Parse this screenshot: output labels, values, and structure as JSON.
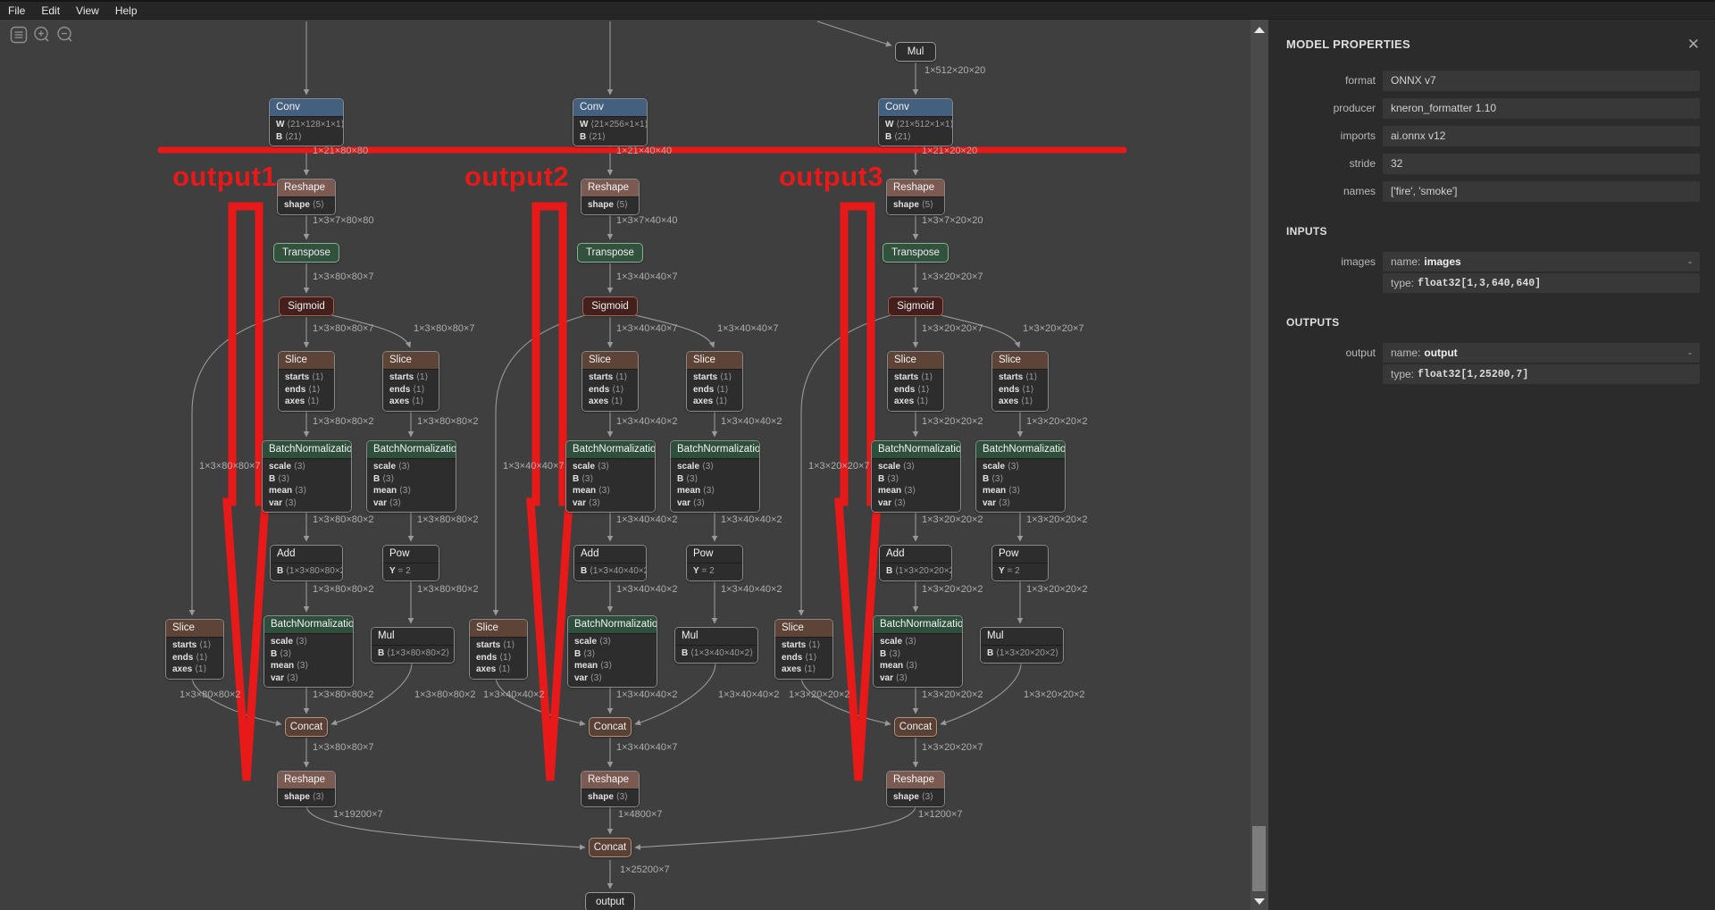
{
  "menu": {
    "items": [
      "File",
      "Edit",
      "View",
      "Help"
    ]
  },
  "toolbar": {
    "buttons": [
      {
        "icon": "menu-icon"
      },
      {
        "icon": "zoom-in-icon"
      },
      {
        "icon": "zoom-out-icon"
      }
    ]
  },
  "annotations": {
    "color": "#e81919",
    "labels": [
      "output1",
      "output2",
      "output3"
    ]
  },
  "graph": {
    "branches": [
      {
        "conv": {
          "title": "Conv",
          "rows": [
            [
              "W",
              "⟨21×128×1×1⟩"
            ],
            [
              "B",
              "⟨21⟩"
            ]
          ]
        },
        "reshape": {
          "title": "Reshape",
          "rows": [
            [
              "shape",
              "⟨5⟩"
            ]
          ]
        },
        "transpose": {
          "title": "Transpose"
        },
        "sigmoid": {
          "title": "Sigmoid"
        },
        "slice": {
          "title": "Slice",
          "rows": [
            [
              "starts",
              "⟨1⟩"
            ],
            [
              "ends",
              "⟨1⟩"
            ],
            [
              "axes",
              "⟨1⟩"
            ]
          ]
        },
        "batchnorm": {
          "title": "BatchNormalization",
          "rows": [
            [
              "scale",
              "⟨3⟩"
            ],
            [
              "B",
              "⟨3⟩"
            ],
            [
              "mean",
              "⟨3⟩"
            ],
            [
              "var",
              "⟨3⟩"
            ]
          ]
        },
        "add": {
          "title": "Add",
          "rows": [
            [
              "B",
              "⟨1×3×80×80×2⟩"
            ]
          ]
        },
        "pow": {
          "title": "Pow",
          "rows": [
            [
              "Y",
              "= 2"
            ]
          ]
        },
        "mul": {
          "title": "Mul",
          "rows": [
            [
              "B",
              "⟨1×3×80×80×2⟩"
            ]
          ]
        },
        "concat": {
          "title": "Concat"
        },
        "reshape2": {
          "title": "Reshape",
          "rows": [
            [
              "shape",
              "⟨3⟩"
            ]
          ]
        },
        "edges": {
          "conv_out": "1×21×80×80",
          "reshape_out": "1×3×7×80×80",
          "t7": "1×3×80×80×7",
          "t2": "1×3×80×80×2",
          "flat": "1×19200×7"
        }
      },
      {
        "conv": {
          "title": "Conv",
          "rows": [
            [
              "W",
              "⟨21×256×1×1⟩"
            ],
            [
              "B",
              "⟨21⟩"
            ]
          ]
        },
        "reshape": {
          "title": "Reshape",
          "rows": [
            [
              "shape",
              "⟨5⟩"
            ]
          ]
        },
        "transpose": {
          "title": "Transpose"
        },
        "sigmoid": {
          "title": "Sigmoid"
        },
        "slice": {
          "title": "Slice",
          "rows": [
            [
              "starts",
              "⟨1⟩"
            ],
            [
              "ends",
              "⟨1⟩"
            ],
            [
              "axes",
              "⟨1⟩"
            ]
          ]
        },
        "batchnorm": {
          "title": "BatchNormalization",
          "rows": [
            [
              "scale",
              "⟨3⟩"
            ],
            [
              "B",
              "⟨3⟩"
            ],
            [
              "mean",
              "⟨3⟩"
            ],
            [
              "var",
              "⟨3⟩"
            ]
          ]
        },
        "add": {
          "title": "Add",
          "rows": [
            [
              "B",
              "⟨1×3×40×40×2⟩"
            ]
          ]
        },
        "pow": {
          "title": "Pow",
          "rows": [
            [
              "Y",
              "= 2"
            ]
          ]
        },
        "mul": {
          "title": "Mul",
          "rows": [
            [
              "B",
              "⟨1×3×40×40×2⟩"
            ]
          ]
        },
        "concat": {
          "title": "Concat"
        },
        "reshape2": {
          "title": "Reshape",
          "rows": [
            [
              "shape",
              "⟨3⟩"
            ]
          ]
        },
        "edges": {
          "conv_out": "1×21×40×40",
          "reshape_out": "1×3×7×40×40",
          "t7": "1×3×40×40×7",
          "t2": "1×3×40×40×2",
          "flat": "1×4800×7"
        }
      },
      {
        "mul_top": {
          "title": "Mul"
        },
        "conv": {
          "title": "Conv",
          "rows": [
            [
              "W",
              "⟨21×512×1×1⟩"
            ],
            [
              "B",
              "⟨21⟩"
            ]
          ]
        },
        "reshape": {
          "title": "Reshape",
          "rows": [
            [
              "shape",
              "⟨5⟩"
            ]
          ]
        },
        "transpose": {
          "title": "Transpose"
        },
        "sigmoid": {
          "title": "Sigmoid"
        },
        "slice": {
          "title": "Slice",
          "rows": [
            [
              "starts",
              "⟨1⟩"
            ],
            [
              "ends",
              "⟨1⟩"
            ],
            [
              "axes",
              "⟨1⟩"
            ]
          ]
        },
        "batchnorm": {
          "title": "BatchNormalization",
          "rows": [
            [
              "scale",
              "⟨3⟩"
            ],
            [
              "B",
              "⟨3⟩"
            ],
            [
              "mean",
              "⟨3⟩"
            ],
            [
              "var",
              "⟨3⟩"
            ]
          ]
        },
        "add": {
          "title": "Add",
          "rows": [
            [
              "B",
              "⟨1×3×20×20×2⟩"
            ]
          ]
        },
        "pow": {
          "title": "Pow",
          "rows": [
            [
              "Y",
              "= 2"
            ]
          ]
        },
        "mul": {
          "title": "Mul",
          "rows": [
            [
              "B",
              "⟨1×3×20×20×2⟩"
            ]
          ]
        },
        "concat": {
          "title": "Concat"
        },
        "reshape2": {
          "title": "Reshape",
          "rows": [
            [
              "shape",
              "⟨3⟩"
            ]
          ]
        },
        "edges": {
          "mul_out": "1×512×20×20",
          "conv_out": "1×21×20×20",
          "reshape_out": "1×3×7×20×20",
          "t7": "1×3×20×20×7",
          "t2": "1×3×20×20×2",
          "flat": "1×1200×7"
        }
      }
    ],
    "bottom": {
      "concat": {
        "title": "Concat"
      },
      "output": {
        "title": "output"
      },
      "edges": {
        "final": "1×25200×7"
      }
    }
  },
  "sidebar": {
    "title": "MODEL PROPERTIES",
    "close": "✕",
    "properties": [
      {
        "label": "format",
        "value": "ONNX v7"
      },
      {
        "label": "producer",
        "value": "kneron_formatter 1.10"
      },
      {
        "label": "imports",
        "value": "ai.onnx v12"
      },
      {
        "label": "stride",
        "value": "32"
      },
      {
        "label": "names",
        "value": "['fire', 'smoke']"
      }
    ],
    "inputs_header": "INPUTS",
    "inputs": [
      {
        "label": "images",
        "name_key": "name:",
        "name": "images",
        "type_key": "type:",
        "type": "float32[1,3,640,640]",
        "collapse": "-"
      }
    ],
    "outputs_header": "OUTPUTS",
    "outputs": [
      {
        "label": "output",
        "name_key": "name:",
        "name": "output",
        "type_key": "type:",
        "type": "float32[1,25200,7]",
        "collapse": "-"
      }
    ]
  },
  "node_colors": {
    "conv_header": "#44607f",
    "reshape_header": "#7b5a51",
    "slice_header": "#5e4337",
    "batchnorm_header": "#2f4f3d",
    "transpose": "#33523e",
    "sigmoid": "#44201d",
    "concat": "#5a4136",
    "edge": "#9a9a9a"
  }
}
